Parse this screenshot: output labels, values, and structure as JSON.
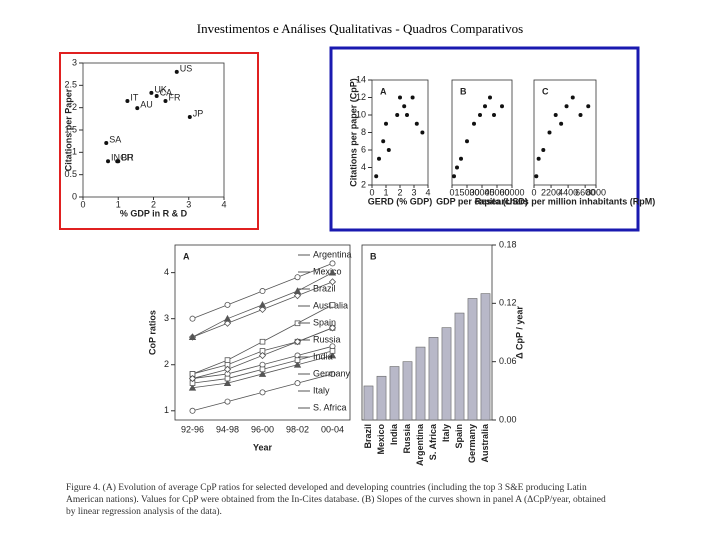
{
  "title": "Investimentos e Análises Qualitativas - Quadros Comparativos",
  "caption": "Figure 4. (A) Evolution of average CpP ratios for selected developed and developing countries (including the top 3 S&E producing Latin American nations). Values for CpP were obtained from the In-Cites database. (B) Slopes of the curves shown in panel A (ΔCpP/year, obtained by linear regression analysis of the data).",
  "chart_data": [
    {
      "type": "scatter",
      "xlabel": "% GDP in R & D",
      "ylabel": "Citations per Paper",
      "labels": [
        "US",
        "UK",
        "CA",
        "FR",
        "IT",
        "AU",
        "JP",
        "SA",
        "IN",
        "CH",
        "BR"
      ],
      "x": [
        2.66,
        1.94,
        2.09,
        2.34,
        1.26,
        1.54,
        3.03,
        0.66,
        0.71,
        0.97,
        1.0
      ],
      "values": [
        2.8,
        2.33,
        2.26,
        2.15,
        2.15,
        1.99,
        1.79,
        1.21,
        0.8,
        0.8,
        0.8
      ],
      "color": "#111",
      "xlim": [
        0,
        4
      ],
      "ylim": [
        0,
        3
      ],
      "xticks": [
        0,
        1,
        2,
        3,
        4
      ],
      "yticks": [
        0,
        0.5,
        1,
        1.5,
        2,
        2.5,
        3
      ]
    },
    {
      "type": "scatter",
      "title": "A",
      "xlabel": "GERD (% GDP)",
      "ylabel": "Citations per paper (CpP)",
      "x": [
        0.3,
        0.5,
        0.8,
        1.0,
        1.2,
        1.8,
        2.0,
        2.3,
        2.5,
        2.9,
        3.2,
        3.6
      ],
      "values": [
        3,
        5,
        7,
        9,
        6,
        10,
        12,
        11,
        10,
        12,
        9,
        8
      ],
      "color": "#111",
      "xlim": [
        0,
        4
      ],
      "ylim": [
        2,
        14
      ],
      "xticks": [
        0,
        1,
        2,
        3,
        4
      ],
      "yticks": [
        2,
        4,
        6,
        8,
        10,
        12,
        14
      ]
    },
    {
      "type": "scatter",
      "title": "B",
      "xlabel": "GDP per capita (USD)",
      "x": [
        2000,
        5000,
        9000,
        15000,
        22000,
        28000,
        33000,
        38000,
        42000,
        50000
      ],
      "values": [
        3,
        4,
        5,
        7,
        9,
        10,
        11,
        12,
        10,
        11
      ],
      "color": "#111",
      "xlim": [
        0,
        60000
      ],
      "ylim": [
        2,
        14
      ],
      "xticks": [
        0,
        15000,
        30000,
        45000,
        60000
      ],
      "yticks": []
    },
    {
      "type": "scatter",
      "title": "C",
      "xlabel": "Researchers per million inhabitants (RpM)",
      "x": [
        300,
        600,
        1200,
        2000,
        2800,
        3500,
        4200,
        5000,
        6000,
        7000
      ],
      "values": [
        3,
        5,
        6,
        8,
        10,
        9,
        11,
        12,
        10,
        11
      ],
      "color": "#111",
      "xlim": [
        0,
        8000
      ],
      "ylim": [
        2,
        14
      ],
      "xticks": [
        0,
        2200,
        4400,
        6600,
        8000
      ],
      "yticks": []
    },
    {
      "type": "line",
      "title": "A",
      "xlabel": "Year",
      "ylabel": "CoP ratios",
      "categories": [
        "92-96",
        "94-98",
        "96-00",
        "98-02",
        "00-04"
      ],
      "ylim": [
        0.8,
        4.6
      ],
      "yticks": [
        1,
        2,
        3,
        4
      ],
      "series": [
        {
          "name": "Argentina",
          "color": "#555",
          "marker": "square",
          "values": [
            1.8,
            2.0,
            2.3,
            2.5,
            2.8
          ]
        },
        {
          "name": "Mexico",
          "color": "#555",
          "marker": "circle",
          "values": [
            1.7,
            1.8,
            2.0,
            2.2,
            2.4
          ]
        },
        {
          "name": "Brazil",
          "color": "#555",
          "marker": "triangle",
          "values": [
            1.5,
            1.6,
            1.8,
            2.0,
            2.2
          ]
        },
        {
          "name": "Australia",
          "color": "#555",
          "marker": "diamond",
          "values": [
            2.6,
            2.9,
            3.2,
            3.5,
            3.8
          ]
        },
        {
          "name": "Spain",
          "color": "#555",
          "marker": "square",
          "values": [
            1.8,
            2.1,
            2.5,
            2.9,
            3.3
          ]
        },
        {
          "name": "Russia",
          "color": "#555",
          "marker": "square",
          "values": [
            1.6,
            1.7,
            1.9,
            2.1,
            2.3
          ]
        },
        {
          "name": "India",
          "color": "#555",
          "marker": "circle",
          "values": [
            1.0,
            1.2,
            1.4,
            1.6,
            1.8
          ]
        },
        {
          "name": "Germany",
          "color": "#555",
          "marker": "circle",
          "values": [
            3.0,
            3.3,
            3.6,
            3.9,
            4.2
          ]
        },
        {
          "name": "Italy",
          "color": "#555",
          "marker": "triangle",
          "values": [
            2.6,
            3.0,
            3.3,
            3.6,
            4.0
          ]
        },
        {
          "name": "S. Africa",
          "color": "#555",
          "marker": "diamond",
          "values": [
            1.7,
            1.9,
            2.2,
            2.5,
            2.8
          ]
        }
      ]
    },
    {
      "type": "bar",
      "title": "B",
      "ylabel": "Δ CpP / year",
      "y_axis_side": "right",
      "color": "#b8b8c8",
      "categories": [
        "Brazil",
        "Mexico",
        "India",
        "Russia",
        "Argentina",
        "S. Africa",
        "Italy",
        "Spain",
        "Germany",
        "Australia"
      ],
      "values": [
        0.035,
        0.045,
        0.055,
        0.06,
        0.075,
        0.085,
        0.095,
        0.11,
        0.125,
        0.13
      ],
      "ylim": [
        0,
        0.18
      ],
      "yticks": [
        {
          "value": 0,
          "label": "0.00"
        },
        {
          "value": 0.06,
          "label": "0.06"
        },
        {
          "value": 0.12,
          "label": "0.12"
        },
        0.18
      ]
    }
  ]
}
